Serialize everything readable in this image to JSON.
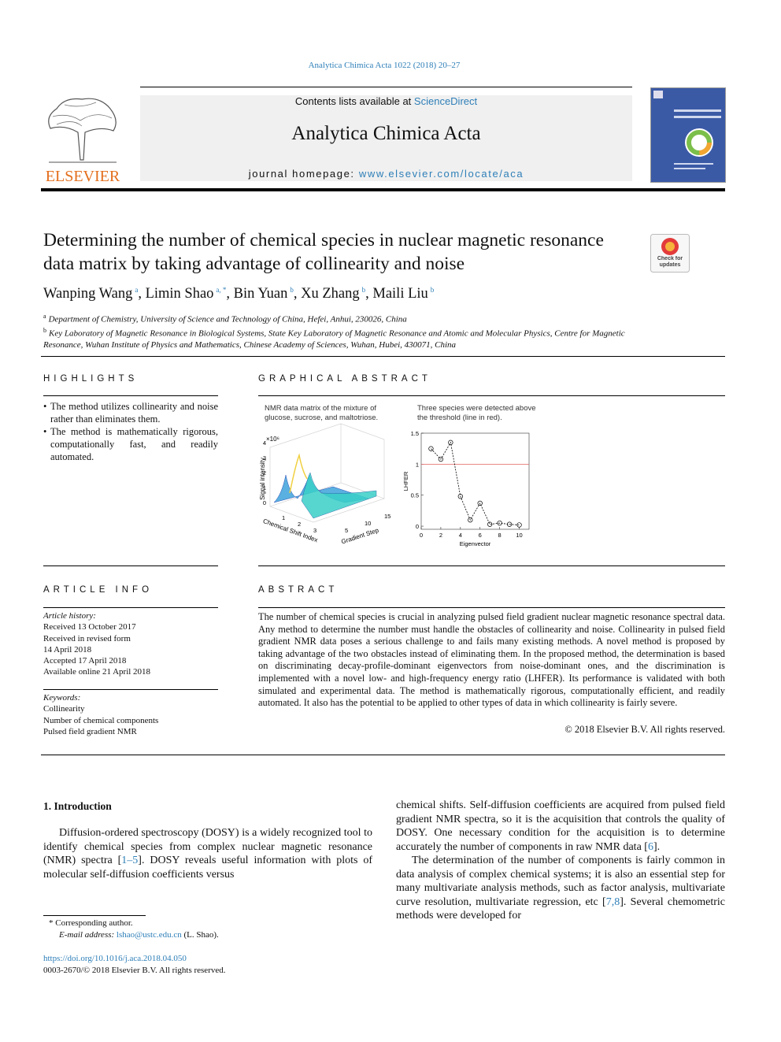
{
  "header": {
    "citation": "Analytica Chimica Acta 1022 (2018) 20–27",
    "contents_text": "Contents lists available at",
    "contents_link": "ScienceDirect",
    "journal": "Analytica Chimica Acta",
    "homepage_label": "journal homepage:",
    "homepage_url": "www.elsevier.com/locate/aca",
    "publisher": "ELSEVIER",
    "badge": "Check for updates"
  },
  "article": {
    "title": "Determining the number of chemical species in nuclear magnetic resonance data matrix by taking advantage of collinearity and noise",
    "authors": [
      {
        "name": "Wanping Wang",
        "sup": "a"
      },
      {
        "name": "Limin Shao",
        "sup": "a, *"
      },
      {
        "name": "Bin Yuan",
        "sup": "b"
      },
      {
        "name": "Xu Zhang",
        "sup": "b"
      },
      {
        "name": "Maili Liu",
        "sup": "b"
      }
    ],
    "affiliations": [
      {
        "label": "a",
        "text": "Department of Chemistry, University of Science and Technology of China, Hefei, Anhui, 230026, China"
      },
      {
        "label": "b",
        "text": "Key Laboratory of Magnetic Resonance in Biological Systems, State Key Laboratory of Magnetic Resonance and Atomic and Molecular Physics, Centre for Magnetic Resonance, Wuhan Institute of Physics and Mathematics, Chinese Academy of Sciences, Wuhan, Hubei, 430071, China"
      }
    ]
  },
  "highlights": {
    "heading": "HIGHLIGHTS",
    "items": [
      "The method utilizes collinearity and noise rather than eliminates them.",
      "The method is mathematically rigorous, computationally fast, and readily automated."
    ]
  },
  "graphical_abstract": {
    "heading": "GRAPHICAL ABSTRACT",
    "left_caption": "NMR data matrix of the mixture of glucose, sucrose, and maltotriose.",
    "left_plot": {
      "scale": "×10⁶",
      "zlabel": "Signal intensity",
      "xlabel": "Chemical Shift Index",
      "ylabel": "Gradient Step",
      "zticks": [
        "0",
        "1",
        "2",
        "3",
        "4"
      ],
      "xticks": [
        "3",
        "2",
        "1"
      ],
      "yticks": [
        "5",
        "10",
        "15"
      ]
    },
    "right_caption": "Three species were detected above the threshold (line in red).",
    "chart_data": {
      "type": "line",
      "xlabel": "Eigenvector",
      "ylabel": "LHFER",
      "x": [
        1,
        2,
        3,
        4,
        5,
        6,
        7,
        8,
        9,
        10
      ],
      "values": [
        1.25,
        1.08,
        1.35,
        0.48,
        0.1,
        0.37,
        0.03,
        0.05,
        0.03,
        0.02
      ],
      "color": "#000000",
      "threshold": 1,
      "threshold_color": "#e06060",
      "xlim": [
        0,
        11
      ],
      "ylim": [
        -0.05,
        1.5
      ],
      "xticks": [
        0,
        2,
        4,
        6,
        8,
        10
      ],
      "yticks": [
        0,
        0.5,
        1,
        1.5
      ]
    }
  },
  "article_info": {
    "heading": "ARTICLE INFO",
    "history_label": "Article history:",
    "history": [
      "Received 13 October 2017",
      "Received in revised form",
      "14 April 2018",
      "Accepted 17 April 2018",
      "Available online 21 April 2018"
    ],
    "keywords_label": "Keywords:",
    "keywords": [
      "Collinearity",
      "Number of chemical components",
      "Pulsed field gradient NMR"
    ]
  },
  "abstract": {
    "heading": "ABSTRACT",
    "text": "The number of chemical species is crucial in analyzing pulsed field gradient nuclear magnetic resonance spectral data. Any method to determine the number must handle the obstacles of collinearity and noise. Collinearity in pulsed field gradient NMR data poses a serious challenge to and fails many existing methods. A novel method is proposed by taking advantage of the two obstacles instead of eliminating them. In the proposed method, the determination is based on discriminating decay-profile-dominant eigenvectors from noise-dominant ones, and the discrimination is implemented with a novel low- and high-frequency energy ratio (LHFER). Its performance is validated with both simulated and experimental data. The method is mathematically rigorous, computationally efficient, and readily automated. It also has the potential to be applied to other types of data in which collinearity is fairly severe.",
    "copyright": "© 2018 Elsevier B.V. All rights reserved."
  },
  "introduction": {
    "heading": "1. Introduction",
    "left_column": [
      [
        "Diffusion-ordered spectroscopy (DOSY) is a widely recognized tool to identify chemical species from complex nuclear magnetic resonance (NMR) spectra [",
        "1–5",
        "]. DOSY reveals useful information with plots of molecular self-diffusion coefficients versus"
      ]
    ],
    "right_column": [
      [
        "chemical shifts. Self-diffusion coefficients are acquired from pulsed field gradient NMR spectra, so it is the acquisition that controls the quality of DOSY. One necessary condition for the acquisition is to determine accurately the number of components in raw NMR data [",
        "6",
        "]."
      ],
      [
        "The determination of the number of components is fairly com­mon in data analysis of complex chemical systems; it is also an essential step for many multivariate analysis methods, such as factor analysis, multivariate curve resolution, multivariate regres­sion, etc [",
        "7,8",
        "]. Several chemometric methods were developed for"
      ]
    ]
  },
  "footnotes": {
    "corresponding": "* Corresponding author.",
    "email_label": "E-mail address:",
    "email": "lshao@ustc.edu.cn",
    "email_owner": "(L. Shao).",
    "doi": "https://doi.org/10.1016/j.aca.2018.04.050",
    "issn": "0003-2670/© 2018 Elsevier B.V. All rights reserved."
  }
}
